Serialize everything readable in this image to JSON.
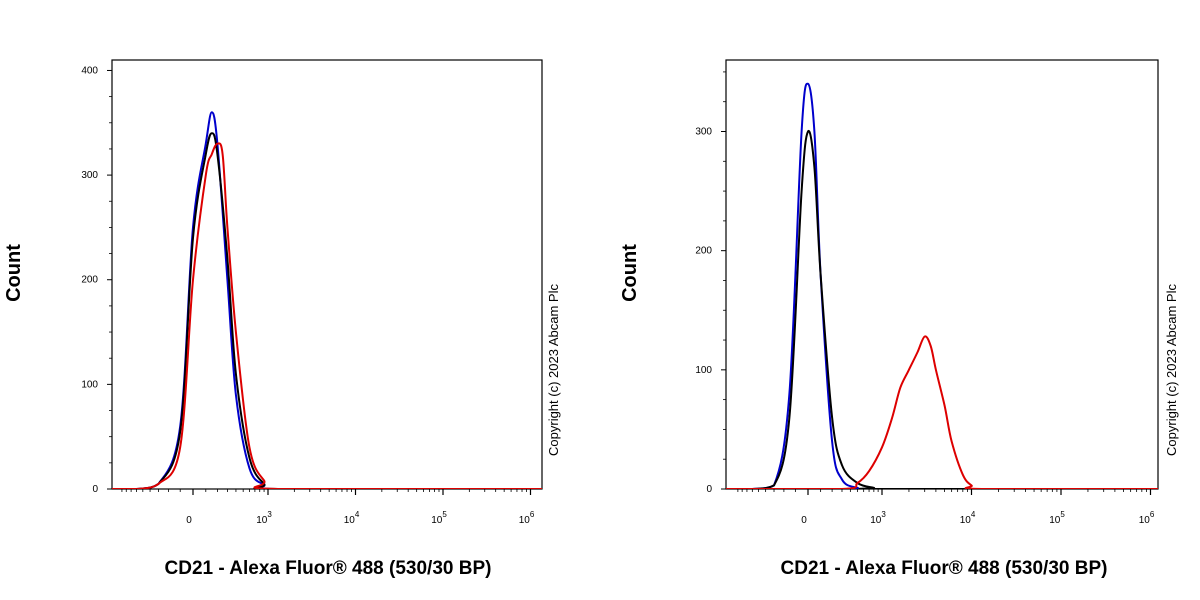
{
  "chart_data": [
    {
      "type": "line",
      "xlabel": "CD21 - Alexa Fluor® 488 (530/30 BP)",
      "ylabel": "Count",
      "x_scale": "biexponential",
      "ylim": [
        0,
        410
      ],
      "yticks": [
        0,
        100,
        200,
        300,
        400
      ],
      "xticks": [
        {
          "value": 0,
          "label": "0"
        },
        {
          "value": 1000,
          "label": "10",
          "exp": "3"
        },
        {
          "value": 10000,
          "label": "10",
          "exp": "4"
        },
        {
          "value": 100000,
          "label": "10",
          "exp": "5"
        },
        {
          "value": 1000000,
          "label": "10",
          "exp": "6"
        }
      ],
      "grid": false,
      "annotation": "Copyright (c) 2023 Abcam Plc",
      "series": [
        {
          "color": "#0000cc",
          "x": [
            -600,
            -300,
            -100,
            0,
            100,
            150,
            200,
            300,
            400,
            600,
            900,
            1300
          ],
          "y": [
            0,
            5,
            60,
            250,
            330,
            360,
            330,
            200,
            90,
            20,
            4,
            0
          ]
        },
        {
          "color": "#000000",
          "x": [
            -600,
            -300,
            -100,
            0,
            100,
            150,
            200,
            300,
            400,
            600,
            900,
            1300
          ],
          "y": [
            0,
            5,
            55,
            240,
            320,
            340,
            320,
            220,
            110,
            30,
            5,
            0
          ]
        },
        {
          "color": "#dd0000",
          "x": [
            -600,
            -300,
            -100,
            0,
            100,
            150,
            200,
            250,
            300,
            400,
            600,
            900,
            1300
          ],
          "y": [
            0,
            5,
            40,
            200,
            300,
            320,
            330,
            320,
            250,
            150,
            40,
            8,
            0
          ]
        }
      ]
    },
    {
      "type": "line",
      "xlabel": "CD21 - Alexa Fluor® 488 (530/30 BP)",
      "ylabel": "Count",
      "x_scale": "biexponential",
      "ylim": [
        0,
        360
      ],
      "yticks": [
        0,
        100,
        200,
        300
      ],
      "xticks": [
        {
          "value": 0,
          "label": "0"
        },
        {
          "value": 1000,
          "label": "10",
          "exp": "3"
        },
        {
          "value": 10000,
          "label": "10",
          "exp": "4"
        },
        {
          "value": 100000,
          "label": "10",
          "exp": "5"
        },
        {
          "value": 1000000,
          "label": "10",
          "exp": "6"
        }
      ],
      "grid": false,
      "annotation": "Copyright (c) 2023 Abcam Plc",
      "series": [
        {
          "color": "#0000cc",
          "x": [
            -600,
            -300,
            -150,
            -50,
            0,
            50,
            100,
            200,
            300,
            500,
            800
          ],
          "y": [
            0,
            3,
            80,
            300,
            340,
            300,
            180,
            40,
            8,
            1,
            0
          ]
        },
        {
          "color": "#000000",
          "x": [
            -600,
            -300,
            -150,
            -50,
            0,
            50,
            100,
            200,
            300,
            500,
            800,
            1000
          ],
          "y": [
            0,
            3,
            60,
            250,
            300,
            270,
            180,
            60,
            20,
            5,
            1,
            0
          ]
        },
        {
          "color": "#dd0000",
          "x": [
            300,
            500,
            700,
            1000,
            1300,
            1600,
            2000,
            2500,
            3000,
            3500,
            4000,
            5000,
            6000,
            8000,
            10000,
            13000
          ],
          "y": [
            0,
            5,
            15,
            35,
            60,
            85,
            100,
            115,
            128,
            120,
            100,
            70,
            40,
            12,
            3,
            0
          ]
        }
      ]
    }
  ]
}
